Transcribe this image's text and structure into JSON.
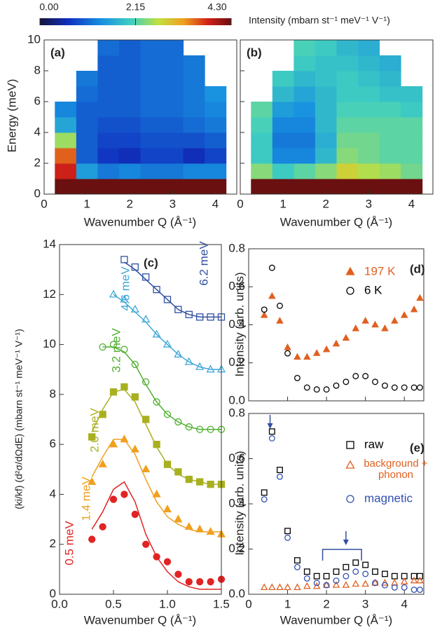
{
  "chart_data": [
    {
      "type": "heatmap",
      "label": "(a)",
      "xlabel": "Wavenumber Q (Å⁻¹)",
      "ylabel": "Energy (meV)",
      "colorbar": {
        "label": "Intensity  (mbarn st⁻¹ meV⁻¹ V⁻¹)",
        "clim": [
          0,
          4.3
        ],
        "ticks": [
          {
            "value": 0,
            "label": "0.00"
          },
          {
            "value": 2.15,
            "label": "2.15"
          },
          {
            "value": 4.3,
            "label": "4.30"
          }
        ]
      },
      "x": [
        0.5,
        1,
        1.5,
        2,
        2.5,
        3,
        3.5,
        4
      ],
      "y": [
        0.5,
        1.5,
        2.5,
        3.5,
        4.5,
        5.5,
        6.5,
        7.5,
        8.5,
        9.5
      ],
      "z": [
        [
          4.3,
          4.3,
          4.3,
          4.3,
          4.3,
          4.3,
          4.3,
          4.3
        ],
        [
          3.8,
          1.5,
          1.2,
          1.3,
          1.2,
          1.2,
          1.3,
          1.3
        ],
        [
          3.5,
          1.0,
          0.7,
          0.6,
          0.8,
          0.8,
          0.6,
          0.8
        ],
        [
          2.5,
          1.0,
          0.8,
          0.8,
          0.9,
          0.9,
          0.9,
          1.0
        ],
        [
          1.6,
          1.0,
          0.9,
          0.9,
          1.0,
          1.0,
          1.1,
          1.2
        ],
        [
          1.3,
          1.0,
          1.0,
          1.0,
          1.1,
          1.1,
          1.2,
          1.3
        ],
        [
          null,
          1.1,
          1.0,
          1.0,
          1.1,
          1.1,
          1.2,
          1.4
        ],
        [
          null,
          1.2,
          1.0,
          1.0,
          1.1,
          1.1,
          1.2,
          null
        ],
        [
          null,
          null,
          1.0,
          1.0,
          1.1,
          1.1,
          1.2,
          null
        ],
        [
          null,
          null,
          1.1,
          1.0,
          1.1,
          1.1,
          null,
          null
        ]
      ],
      "xlim": [
        0,
        4.5
      ],
      "xticks": [
        0,
        1,
        2,
        3,
        4
      ],
      "ylim": [
        0,
        10
      ],
      "yticks": [
        0,
        2,
        4,
        6,
        8,
        10
      ]
    },
    {
      "type": "heatmap",
      "label": "(b)",
      "xlabel": "Wavenumber Q (Å⁻¹)",
      "x": [
        0.5,
        1,
        1.5,
        2,
        2.5,
        3,
        3.5,
        4
      ],
      "y": [
        0.5,
        1.5,
        2.5,
        3.5,
        4.5,
        5.5,
        6.5,
        7.5,
        8.5,
        9.5
      ],
      "z": [
        [
          4.3,
          4.3,
          4.3,
          4.3,
          4.3,
          4.3,
          4.3,
          4.3
        ],
        [
          2.4,
          2.0,
          2.2,
          2.4,
          2.8,
          2.6,
          2.5,
          2.3
        ],
        [
          2.0,
          1.3,
          1.3,
          1.8,
          2.4,
          2.3,
          2.2,
          2.2
        ],
        [
          2.0,
          1.2,
          1.2,
          1.7,
          2.3,
          2.3,
          2.2,
          2.2
        ],
        [
          2.1,
          1.3,
          1.3,
          1.8,
          2.2,
          2.2,
          2.2,
          2.2
        ],
        [
          2.2,
          1.5,
          1.4,
          1.8,
          2.1,
          2.1,
          2.1,
          2.0
        ],
        [
          null,
          1.8,
          1.6,
          1.8,
          2.0,
          2.0,
          1.9,
          1.9
        ],
        [
          null,
          2.0,
          1.8,
          1.9,
          2.0,
          1.9,
          1.8,
          null
        ],
        [
          null,
          null,
          2.0,
          1.9,
          1.9,
          1.8,
          1.7,
          null
        ],
        [
          null,
          null,
          2.1,
          2.0,
          1.8,
          1.7,
          null,
          null
        ]
      ],
      "xlim": [
        0,
        4.5
      ],
      "xticks": [
        0,
        1,
        2,
        3,
        4
      ],
      "ylim": [
        0,
        10
      ],
      "yticks": [
        0,
        2,
        4,
        6,
        8,
        10
      ],
      "ytick_labels": false
    },
    {
      "type": "scatter",
      "label": "(c)",
      "xlabel": "Wavenumber Q (Å⁻¹)",
      "ylabel": "(ki/kf) (d²σ/dΩdE) (mbarn st⁻¹ meV⁻¹ V⁻¹)",
      "x": [
        0.3,
        0.4,
        0.5,
        0.6,
        0.7,
        0.8,
        0.9,
        1.0,
        1.1,
        1.2,
        1.3,
        1.4,
        1.5
      ],
      "series": [
        {
          "name": "0.5 meV",
          "color": "#e02424",
          "marker": "circle",
          "filled": true,
          "values": [
            2.2,
            2.7,
            3.8,
            4.0,
            3.2,
            2.0,
            1.5,
            1.3,
            0.8,
            0.5,
            0.5,
            0.5,
            0.6
          ],
          "fit": [
            2.6,
            3.3,
            4.2,
            4.5,
            3.7,
            2.4,
            1.5,
            0.9,
            0.5,
            0.3,
            0.2,
            0.2,
            0.2
          ]
        },
        {
          "name": "1.4 meV",
          "color": "#f0a020",
          "marker": "triangle",
          "filled": true,
          "values": [
            4.5,
            5.2,
            6.0,
            6.2,
            5.8,
            5.0,
            4.0,
            3.4,
            3.0,
            2.7,
            2.6,
            2.5,
            2.4
          ],
          "fit": [
            4.7,
            5.5,
            6.2,
            6.2,
            5.6,
            4.6,
            3.7,
            3.1,
            2.8,
            2.6,
            2.5,
            2.5,
            2.5
          ]
        },
        {
          "name": "2.0 meV",
          "color": "#a8b020",
          "marker": "square",
          "filled": true,
          "values": [
            6.3,
            7.2,
            8.1,
            8.3,
            7.9,
            7.0,
            6.0,
            5.2,
            4.9,
            4.6,
            4.5,
            4.4,
            4.4
          ],
          "fit": [
            6.5,
            7.4,
            8.1,
            8.2,
            7.7,
            6.8,
            5.9,
            5.2,
            4.8,
            4.6,
            4.5,
            4.4,
            4.4
          ]
        },
        {
          "name": "3.2 meV",
          "color": "#50b030",
          "marker": "circle",
          "filled": false,
          "values": [
            null,
            9.9,
            10.0,
            9.8,
            9.2,
            8.5,
            7.7,
            7.2,
            6.9,
            6.7,
            6.6,
            6.6,
            6.6
          ],
          "fit": [
            null,
            9.9,
            9.9,
            9.7,
            9.2,
            8.4,
            7.7,
            7.2,
            6.9,
            6.7,
            6.6,
            6.6,
            6.6
          ]
        },
        {
          "name": "4.6 meV",
          "color": "#40a8d8",
          "marker": "triangle",
          "filled": false,
          "values": [
            null,
            null,
            12.0,
            11.8,
            11.4,
            11.0,
            10.4,
            10.0,
            9.6,
            9.3,
            9.1,
            9.0,
            9.0
          ],
          "fit": [
            null,
            null,
            12.0,
            11.7,
            11.3,
            10.9,
            10.4,
            10.0,
            9.6,
            9.3,
            9.1,
            9.0,
            9.0
          ]
        },
        {
          "name": "6.2 meV",
          "color": "#3050a0",
          "marker": "square",
          "filled": false,
          "values": [
            null,
            null,
            null,
            13.4,
            13.1,
            12.7,
            12.2,
            11.8,
            11.4,
            11.2,
            11.1,
            11.1,
            11.1
          ],
          "fit": [
            null,
            null,
            null,
            13.3,
            13.0,
            12.6,
            12.2,
            11.8,
            11.4,
            11.2,
            11.1,
            11.1,
            11.1
          ]
        }
      ],
      "xlim": [
        0,
        1.5
      ],
      "xticks": [
        {
          "value": 0,
          "label": "0.0"
        },
        0.5,
        {
          "value": 1,
          "label": "1.0"
        },
        1.5
      ],
      "ylim": [
        0,
        14
      ],
      "yticks": [
        0,
        2,
        4,
        6,
        8,
        10,
        12,
        14
      ]
    },
    {
      "type": "scatter",
      "label": "(d)",
      "ylabel": "Intensity  (arb. units)",
      "x": [
        0.4,
        0.6,
        0.8,
        1.0,
        1.25,
        1.5,
        1.75,
        2.0,
        2.25,
        2.5,
        2.75,
        3.0,
        3.25,
        3.5,
        3.75,
        4.0,
        4.25,
        4.4
      ],
      "series": [
        {
          "name": "197 K",
          "color": "#e06020",
          "marker": "triangle",
          "filled": true,
          "values": [
            0.45,
            0.55,
            0.42,
            0.28,
            0.23,
            0.23,
            0.25,
            0.27,
            0.3,
            0.33,
            0.38,
            0.42,
            0.4,
            0.38,
            0.42,
            0.45,
            0.48,
            0.54
          ]
        },
        {
          "name": "6 K",
          "color": "#000000",
          "marker": "circle",
          "filled": false,
          "values": [
            0.48,
            0.7,
            0.5,
            0.25,
            0.12,
            0.07,
            0.06,
            0.06,
            0.08,
            0.1,
            0.13,
            0.13,
            0.1,
            0.08,
            0.07,
            0.07,
            0.07,
            0.07
          ]
        }
      ],
      "xlim": [
        0,
        4.5
      ],
      "xticks": [
        0,
        1,
        2,
        3,
        4
      ],
      "xtick_labels": false,
      "ylim": [
        0,
        0.8
      ],
      "yticks": [
        {
          "value": 0,
          "label": "0.0"
        },
        0.2,
        0.4,
        0.6,
        0.8
      ]
    },
    {
      "type": "scatter",
      "label": "(e)",
      "xlabel": "Wavenumber Q (Å⁻¹)",
      "ylabel": "Intensity  (arb. units)",
      "x": [
        0.4,
        0.6,
        0.8,
        1.0,
        1.25,
        1.5,
        1.75,
        2.0,
        2.25,
        2.5,
        2.75,
        3.0,
        3.25,
        3.5,
        3.75,
        4.0,
        4.25,
        4.4
      ],
      "series": [
        {
          "name": "raw",
          "color": "#000000",
          "marker": "square",
          "filled": false,
          "values": [
            0.45,
            0.72,
            0.55,
            0.28,
            0.15,
            0.1,
            0.08,
            0.08,
            0.1,
            0.12,
            0.14,
            0.13,
            0.1,
            0.09,
            0.08,
            0.08,
            0.08,
            0.08
          ]
        },
        {
          "name": "background + phonon",
          "color": "#e06020",
          "marker": "triangle",
          "filled": false,
          "values": [
            0.03,
            0.03,
            0.03,
            0.03,
            0.03,
            0.035,
            0.035,
            0.04,
            0.04,
            0.04,
            0.045,
            0.045,
            0.05,
            0.05,
            0.05,
            0.055,
            0.06,
            0.06
          ]
        },
        {
          "name": "magnetic",
          "color": "#3050b0",
          "marker": "circle",
          "filled": false,
          "values": [
            0.42,
            0.69,
            0.52,
            0.25,
            0.12,
            0.07,
            0.05,
            0.04,
            0.06,
            0.08,
            0.1,
            0.09,
            0.05,
            0.04,
            0.03,
            0.03,
            0.02,
            0.02
          ]
        }
      ],
      "arrows": [
        0.55,
        2.5
      ],
      "bracket": [
        1.9,
        2.9
      ],
      "xlim": [
        0,
        4.5
      ],
      "xticks": [
        0,
        1,
        2,
        3,
        4
      ],
      "ylim": [
        0,
        0.8
      ],
      "yticks": [
        {
          "value": 0,
          "label": "0.0"
        },
        0.2,
        0.4,
        0.6,
        0.8
      ]
    }
  ]
}
